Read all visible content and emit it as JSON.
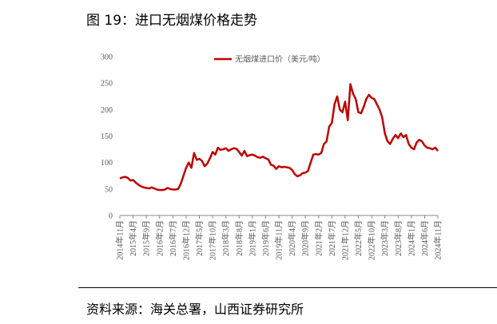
{
  "figure_title": "图 19：进口无烟煤价格走势",
  "source": "资料来源：海关总署，山西证券研究所",
  "chart_data": {
    "type": "line",
    "categories": [
      "2014年11月",
      null,
      null,
      null,
      null,
      "2015年4月",
      null,
      null,
      null,
      null,
      "2015年9月",
      null,
      null,
      null,
      null,
      "2016年2月",
      null,
      null,
      null,
      null,
      "2016年7月",
      null,
      null,
      null,
      null,
      "2016年12月",
      null,
      null,
      null,
      null,
      "2017年5月",
      null,
      null,
      null,
      null,
      "2017年10月",
      null,
      null,
      null,
      null,
      "2018年3月",
      null,
      null,
      null,
      null,
      "2018年8月",
      null,
      null,
      null,
      null,
      "2019年1月",
      null,
      null,
      null,
      null,
      "2019年6月",
      null,
      null,
      null,
      null,
      "2019年11月",
      null,
      null,
      null,
      null,
      "2020年4月",
      null,
      null,
      null,
      null,
      "2020年9月",
      null,
      null,
      null,
      null,
      "2021年2月",
      null,
      null,
      null,
      null,
      "2021年7月",
      null,
      null,
      null,
      null,
      "2021年12月",
      null,
      null,
      null,
      null,
      "2022年5月",
      null,
      null,
      null,
      null,
      "2022年10月",
      null,
      null,
      null,
      null,
      "2023年3月",
      null,
      null,
      null,
      null,
      "2023年8月",
      null,
      null,
      null,
      null,
      "2024年1月",
      null,
      null,
      null,
      null,
      "2024年6月",
      null,
      null,
      null,
      null,
      "2024年11月"
    ],
    "series": [
      {
        "name": "无烟煤进口价（美元/吨）",
        "color": "#c00000",
        "values": [
          70,
          72,
          73,
          71,
          66,
          67,
          62,
          58,
          55,
          53,
          52,
          51,
          53,
          51,
          49,
          48,
          48,
          49,
          52,
          50,
          49,
          49,
          50,
          60,
          75,
          90,
          100,
          90,
          118,
          105,
          107,
          103,
          93,
          98,
          108,
          120,
          115,
          128,
          124,
          125,
          127,
          122,
          125,
          127,
          126,
          120,
          113,
          122,
          112,
          114,
          115,
          113,
          110,
          109,
          111,
          108,
          106,
          96,
          94,
          88,
          93,
          91,
          92,
          91,
          90,
          86,
          78,
          74,
          76,
          80,
          81,
          84,
          100,
          115,
          116,
          115,
          118,
          135,
          140,
          168,
          175,
          210,
          225,
          200,
          195,
          215,
          180,
          248,
          230,
          220,
          195,
          193,
          205,
          220,
          228,
          222,
          220,
          210,
          200,
          185,
          155,
          140,
          135,
          145,
          152,
          146,
          155,
          148,
          152,
          135,
          128,
          125,
          138,
          143,
          140,
          132,
          128,
          127,
          125,
          128,
          122
        ]
      }
    ],
    "ylim": [
      0,
      300
    ],
    "yticks": [
      0,
      50,
      100,
      150,
      200,
      250,
      300
    ],
    "legend": "top"
  }
}
